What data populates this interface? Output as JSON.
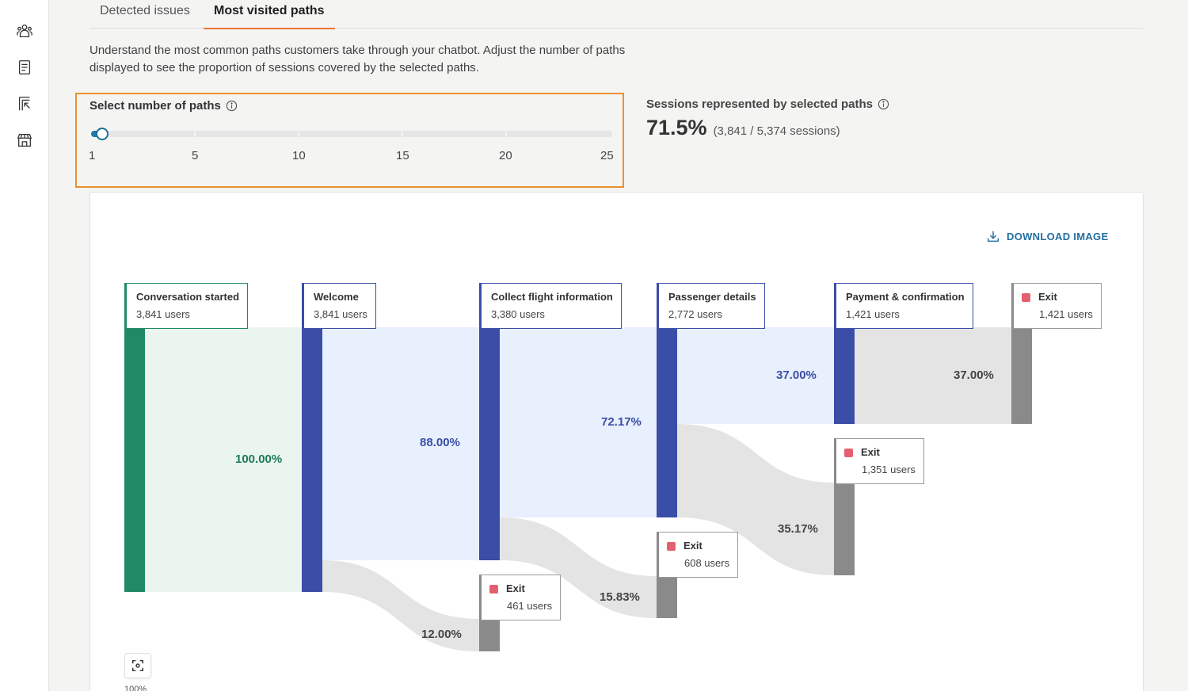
{
  "rail": {
    "icons": [
      "users-icon",
      "document-icon",
      "report-icon",
      "store-icon"
    ]
  },
  "tabs": [
    {
      "label": "Detected issues",
      "active": false
    },
    {
      "label": "Most visited paths",
      "active": true
    }
  ],
  "description": "Understand the most common paths customers take through your chatbot. Adjust the number of paths displayed to see the proportion of sessions covered by the selected paths.",
  "slider": {
    "label": "Select number of paths",
    "min": 1,
    "max": 25,
    "value": 1,
    "ticks": [
      "1",
      "5",
      "10",
      "15",
      "20",
      "25"
    ]
  },
  "sessions": {
    "label": "Sessions represented by selected paths",
    "percent": "71.5%",
    "detail": "(3,841 / 5,374 sessions)"
  },
  "download_label": "DOWNLOAD IMAGE",
  "colors": {
    "accent": "#e8773a",
    "green": "#1f8a65",
    "blue": "#3a4ea8",
    "gray": "#8a8a8a",
    "exit": "#e5606f"
  },
  "sankey": {
    "nodes": [
      {
        "title": "Conversation started",
        "users": "3,841 users"
      },
      {
        "title": "Welcome",
        "users": "3,841 users"
      },
      {
        "title": "Collect flight information",
        "users": "3,380 users"
      },
      {
        "title": "Passenger details",
        "users": "2,772 users"
      },
      {
        "title": "Payment & confirmation",
        "users": "1,421 users"
      },
      {
        "title": "Exit",
        "users": "1,421 users"
      },
      {
        "title": "Exit",
        "users": "461 users"
      },
      {
        "title": "Exit",
        "users": "608 users"
      },
      {
        "title": "Exit",
        "users": "1,351 users"
      }
    ],
    "flows": [
      {
        "from": "Conversation started",
        "to": "Welcome",
        "pct": "100.00%"
      },
      {
        "from": "Welcome",
        "to": "Collect flight information",
        "pct": "88.00%"
      },
      {
        "from": "Welcome",
        "to": "Exit",
        "pct": "12.00%"
      },
      {
        "from": "Collect flight information",
        "to": "Passenger details",
        "pct": "72.17%"
      },
      {
        "from": "Collect flight information",
        "to": "Exit",
        "pct": "15.83%"
      },
      {
        "from": "Passenger details",
        "to": "Payment & confirmation",
        "pct": "37.00%"
      },
      {
        "from": "Passenger details",
        "to": "Exit",
        "pct": "35.17%"
      },
      {
        "from": "Payment & confirmation",
        "to": "Exit",
        "pct": "37.00%"
      }
    ]
  },
  "zoom": "100%"
}
